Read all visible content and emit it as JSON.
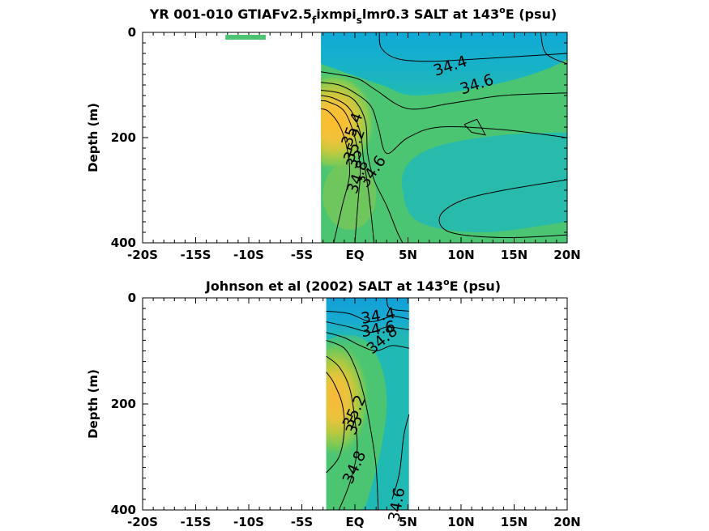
{
  "chart_data": [
    {
      "type": "heatmap",
      "panel": "top",
      "title_parts": [
        "YR 001-010 GTIAFv2.5",
        "f",
        "ixmpi",
        "s",
        "lmr0.3 SALT at 143",
        "o",
        "E (psu)"
      ],
      "ylabel": "Depth (m)",
      "xlim": [
        -20,
        20
      ],
      "ylim": [
        0,
        400
      ],
      "y_reversed": true,
      "xticks": [
        -20,
        -15,
        -10,
        -5,
        0,
        5,
        10,
        15,
        20
      ],
      "xtick_labels": [
        "-20S",
        "-15S",
        "-10S",
        "-5S",
        "EQ",
        "5N",
        "10N",
        "15N",
        "20N"
      ],
      "yticks": [
        0,
        200,
        400
      ],
      "ytick_labels": [
        "0",
        "200",
        "400"
      ],
      "data_lat_range": [
        -3.2,
        20
      ],
      "salinity_max": {
        "lat": -2.0,
        "depth": 170,
        "value": 35.5
      },
      "contour_labels": [
        {
          "text": "34.4",
          "lat": 9.0,
          "depth": 65,
          "angle": -18
        },
        {
          "text": "34.6",
          "lat": 11.5,
          "depth": 100,
          "angle": -18
        },
        {
          "text": "35.4",
          "lat": -0.2,
          "depth": 185,
          "angle": -70
        },
        {
          "text": "35.2",
          "lat": 0.0,
          "depth": 215,
          "angle": -70
        },
        {
          "text": "35",
          "lat": 0.0,
          "depth": 240,
          "angle": -70
        },
        {
          "text": "34.8",
          "lat": 0.3,
          "depth": 275,
          "angle": -70
        },
        {
          "text": "34.6",
          "lat": 1.7,
          "depth": 265,
          "angle": -55
        }
      ],
      "extra_patch": {
        "lat_range": [
          -12.2,
          -8.4
        ],
        "depth_range": [
          5,
          15
        ]
      }
    },
    {
      "type": "heatmap",
      "panel": "bottom",
      "title_parts": [
        "Johnson et al (2002) SALT at 143",
        "o",
        "E (psu)"
      ],
      "ylabel": "Depth (m)",
      "xlim": [
        -20,
        20
      ],
      "ylim": [
        0,
        400
      ],
      "y_reversed": true,
      "xticks": [
        -20,
        -15,
        -10,
        -5,
        0,
        5,
        10,
        15,
        20
      ],
      "xtick_labels": [
        "-20S",
        "-15S",
        "-10S",
        "-5S",
        "EQ",
        "5N",
        "10N",
        "15N",
        "20N"
      ],
      "yticks": [
        0,
        200,
        400
      ],
      "ytick_labels": [
        "0",
        "200",
        "400"
      ],
      "data_lat_range": [
        -2.7,
        5.1
      ],
      "salinity_max": {
        "lat": -2.0,
        "depth": 190,
        "value": 35.4
      },
      "contour_labels": [
        {
          "text": "34.4",
          "lat": 2.2,
          "depth": 35,
          "angle": -10
        },
        {
          "text": "34.6",
          "lat": 2.2,
          "depth": 60,
          "angle": -10
        },
        {
          "text": "34.8",
          "lat": 2.6,
          "depth": 80,
          "angle": -40
        },
        {
          "text": "35.2",
          "lat": 0.0,
          "depth": 215,
          "angle": -65
        },
        {
          "text": "35",
          "lat": 0.0,
          "depth": 240,
          "angle": -65
        },
        {
          "text": "34.8",
          "lat": 0.0,
          "depth": 320,
          "angle": -65
        },
        {
          "text": "34.6",
          "lat": 4.0,
          "depth": 390,
          "angle": -80
        }
      ]
    }
  ],
  "colors": {
    "low_salinity": "#11a8d8",
    "mid_low": "#20b9b4",
    "mid": "#4cc573",
    "mid_high": "#9bc93e",
    "high_salinity": "#fbb93a",
    "peak_salinity": "#fcbd2c",
    "background": "#ffffff"
  }
}
